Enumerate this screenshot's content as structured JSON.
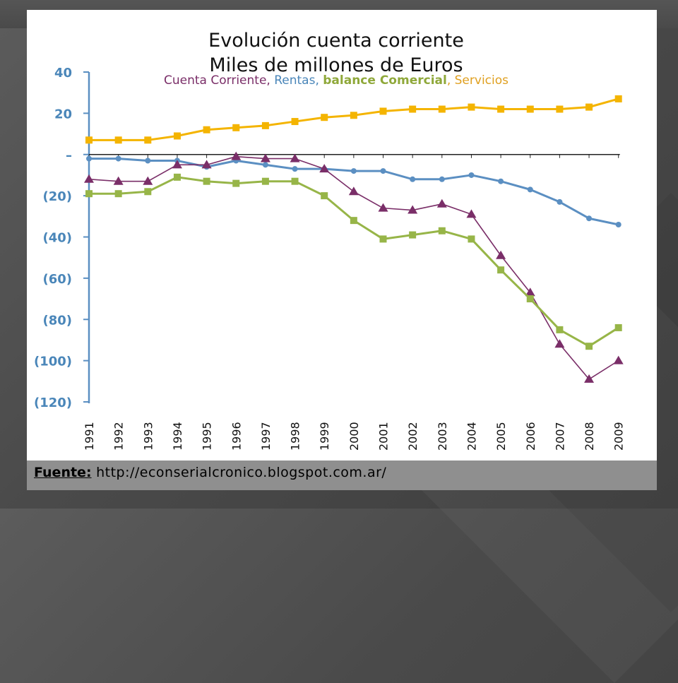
{
  "slide": {
    "source_label": "Fuente:",
    "source_url": " http://econserialcronico.blogspot.com.ar/"
  },
  "chart_data": {
    "type": "line",
    "title": "Evolución cuenta corriente",
    "subtitle": "Miles de millones de Euros",
    "legend": {
      "placement": "top",
      "items": [
        {
          "text": "Cuenta Corriente",
          "color": "#7a2e68",
          "bold": false,
          "sep": ", "
        },
        {
          "text": "Rentas",
          "color": "#4a86b9",
          "bold": false,
          "sep": ", "
        },
        {
          "text": "balance Comercial",
          "color": "#8fa83a",
          "bold": true,
          "sep": ", "
        },
        {
          "text": "Servicios",
          "color": "#e0a020",
          "bold": false,
          "sep": ""
        }
      ]
    },
    "ylim": [
      -120,
      40
    ],
    "yticks": [
      40,
      20,
      0,
      -20,
      -40,
      -60,
      -80,
      -100,
      -120
    ],
    "ytick_labels": [
      "40",
      "20",
      "–",
      "(20)",
      "(40)",
      "(60)",
      "(80)",
      "(100)",
      "(120)"
    ],
    "x": [
      "1991",
      "1992",
      "1993",
      "1994",
      "1995",
      "1996",
      "1997",
      "1998",
      "1999",
      "2000",
      "2001",
      "2002",
      "2003",
      "2004",
      "2005",
      "2006",
      "2007",
      "2008",
      "2009"
    ],
    "grid": false,
    "series": [
      {
        "name": "Servicios",
        "color": "#f4b400",
        "marker": "square",
        "values": [
          7,
          7,
          7,
          9,
          12,
          13,
          14,
          16,
          18,
          19,
          21,
          22,
          22,
          23,
          22,
          22,
          22,
          23,
          27
        ]
      },
      {
        "name": "Rentas",
        "color": "#5b8fc2",
        "marker": "circle",
        "values": [
          -2,
          -2,
          -3,
          -3,
          -6,
          -3,
          -5,
          -7,
          -7,
          -8,
          -8,
          -12,
          -12,
          -10,
          -13,
          -17,
          -23,
          -31,
          -34
        ]
      },
      {
        "name": "Cuenta Corriente",
        "color": "#7a2e68",
        "marker": "triangle",
        "values": [
          -12,
          -13,
          -13,
          -5,
          -5,
          -1,
          -2,
          -2,
          -7,
          -18,
          -26,
          -27,
          -24,
          -29,
          -49,
          -67,
          -92,
          -109,
          -100
        ]
      },
      {
        "name": "balance Comercial",
        "color": "#97b548",
        "marker": "square",
        "values": [
          -19,
          -19,
          -18,
          -11,
          -13,
          -14,
          -13,
          -13,
          -20,
          -32,
          -41,
          -39,
          -37,
          -41,
          -56,
          -70,
          -85,
          -93,
          -84
        ]
      }
    ]
  }
}
